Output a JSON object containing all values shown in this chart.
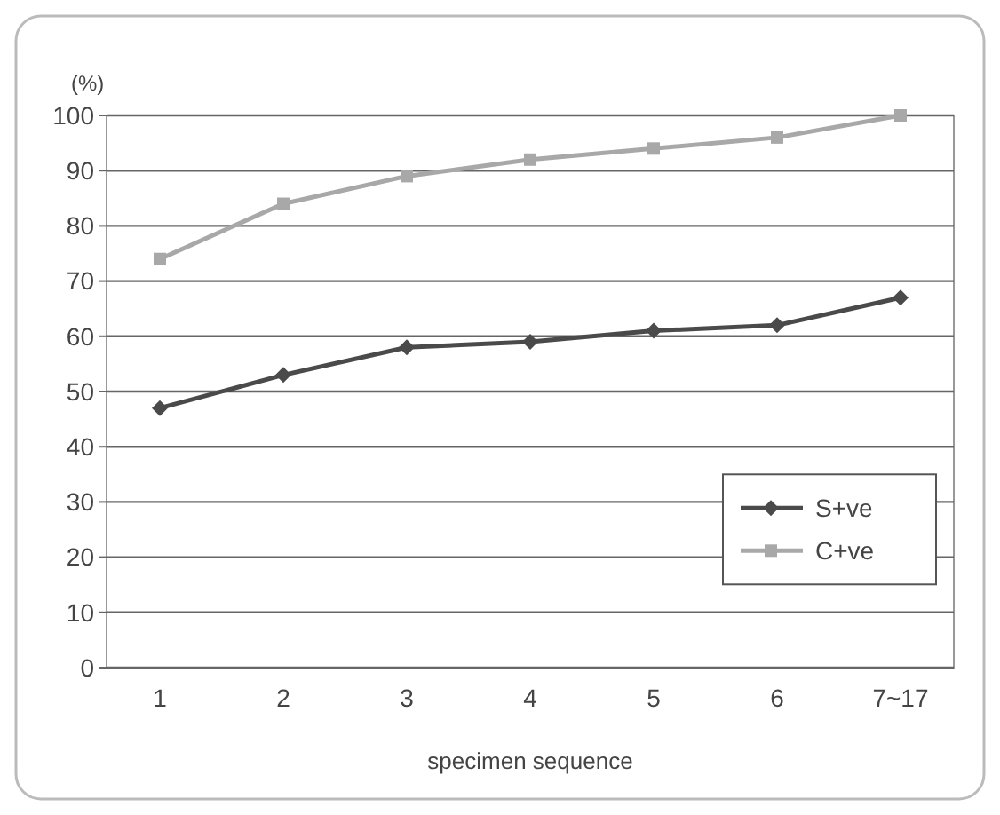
{
  "chart_data": {
    "type": "line",
    "ylabel": "(%)",
    "xlabel": "specimen sequence",
    "categories": [
      "1",
      "2",
      "3",
      "4",
      "5",
      "6",
      "7~17"
    ],
    "series": [
      {
        "name": "S+ve",
        "color": "#4a4a4a",
        "marker": "diamond",
        "values": [
          47,
          53,
          58,
          59,
          61,
          62,
          67
        ]
      },
      {
        "name": "C+ve",
        "color": "#a8a8a8",
        "marker": "square",
        "values": [
          74,
          84,
          89,
          92,
          94,
          96,
          100
        ]
      }
    ],
    "ylim": [
      0,
      100
    ],
    "yticks": [
      0,
      10,
      20,
      30,
      40,
      50,
      60,
      70,
      80,
      90,
      100
    ],
    "grid": "y",
    "legend": "bottom right"
  }
}
